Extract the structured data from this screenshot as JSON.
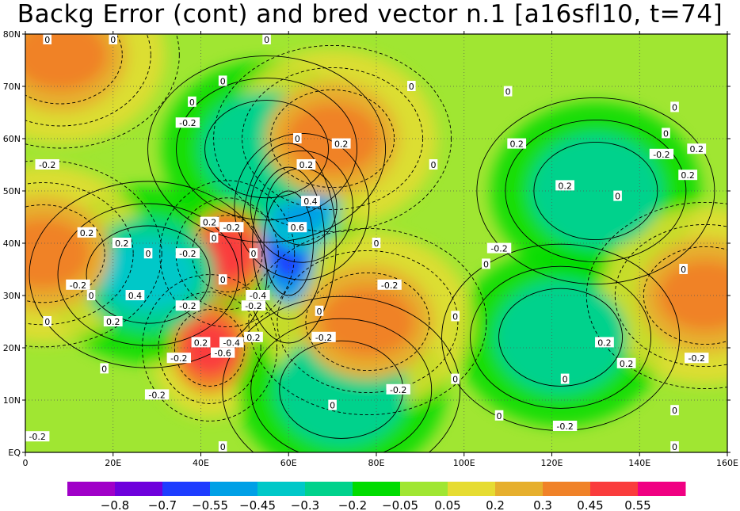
{
  "chart_data": {
    "type": "heatmap",
    "title": "Backg Error (cont) and bred vector n.1 [a16sfl10, t=74]",
    "projection": "lat-lon map (longitude 0 to 160E, latitude 0 to 80N)",
    "xlim": [
      0,
      160
    ],
    "ylim": [
      0,
      80
    ],
    "x_ticks": [
      "0",
      "20E",
      "40E",
      "60E",
      "80E",
      "100E",
      "120E",
      "140E",
      "160E"
    ],
    "y_ticks": [
      "EQ",
      "10N",
      "20N",
      "30N",
      "40N",
      "50N",
      "60N",
      "70N",
      "80N"
    ],
    "grid": true,
    "colorbar": {
      "placement": "bottom",
      "colors": [
        "#a000c8",
        "#6e00dc",
        "#1e3cff",
        "#00a0e6",
        "#00c8c8",
        "#00d28c",
        "#00dc00",
        "#a0e632",
        "#e6dc32",
        "#e6af2d",
        "#f08228",
        "#fa3c3c",
        "#f00082"
      ],
      "labels": [
        "-0.8",
        "-0.7",
        "-0.55",
        "-0.45",
        "-0.3",
        "-0.2",
        "-0.05",
        "0.05",
        "0.2",
        "0.3",
        "0.45",
        "0.55"
      ]
    },
    "shaded_features": [
      {
        "lon": 46,
        "lat": 38,
        "value": 0.5
      },
      {
        "lon": 42,
        "lat": 20,
        "value": 0.5
      },
      {
        "lon": 60,
        "lat": 40,
        "value": -0.7
      },
      {
        "lon": 63,
        "lat": 47,
        "value": -0.5
      },
      {
        "lon": 28,
        "lat": 34,
        "value": -0.35
      },
      {
        "lon": 122,
        "lat": 22,
        "value": -0.3
      },
      {
        "lon": 130,
        "lat": 50,
        "value": -0.3
      },
      {
        "lon": 72,
        "lat": 12,
        "value": -0.3
      },
      {
        "lon": 55,
        "lat": 58,
        "value": -0.3
      },
      {
        "lon": 4,
        "lat": 38,
        "value": 0.35
      },
      {
        "lon": 155,
        "lat": 30,
        "value": 0.35
      },
      {
        "lon": 78,
        "lat": 25,
        "value": 0.3
      },
      {
        "lon": 8,
        "lat": 76,
        "value": 0.3
      },
      {
        "lon": 70,
        "lat": 60,
        "value": 0.3
      }
    ],
    "contour_labels": [
      {
        "text": "0",
        "lon": 5,
        "lat": 79
      },
      {
        "text": "0",
        "lon": 20,
        "lat": 79
      },
      {
        "text": "0",
        "lon": 55,
        "lat": 79
      },
      {
        "text": "0",
        "lon": 45,
        "lat": 71
      },
      {
        "text": "0",
        "lon": 88,
        "lat": 70
      },
      {
        "text": "0",
        "lon": 110,
        "lat": 69
      },
      {
        "text": "0",
        "lon": 38,
        "lat": 67
      },
      {
        "text": "-0.2",
        "lon": 37,
        "lat": 63
      },
      {
        "text": "0",
        "lon": 148,
        "lat": 66
      },
      {
        "text": "0",
        "lon": 62,
        "lat": 60
      },
      {
        "text": "0.2",
        "lon": 72,
        "lat": 59
      },
      {
        "text": "0.2",
        "lon": 112,
        "lat": 59
      },
      {
        "text": "0",
        "lon": 146,
        "lat": 61
      },
      {
        "text": "-0.2",
        "lon": 145,
        "lat": 57
      },
      {
        "text": "0.2",
        "lon": 153,
        "lat": 58
      },
      {
        "text": "-0.2",
        "lon": 5,
        "lat": 55
      },
      {
        "text": "0.2",
        "lon": 64,
        "lat": 55
      },
      {
        "text": "0",
        "lon": 93,
        "lat": 55
      },
      {
        "text": "0.2",
        "lon": 151,
        "lat": 53
      },
      {
        "text": "0.2",
        "lon": 123,
        "lat": 51
      },
      {
        "text": "0",
        "lon": 135,
        "lat": 49
      },
      {
        "text": "0.4",
        "lon": 65,
        "lat": 48
      },
      {
        "text": "0.2",
        "lon": 42,
        "lat": 44
      },
      {
        "text": "0.6",
        "lon": 62,
        "lat": 43
      },
      {
        "text": "0.2",
        "lon": 14,
        "lat": 42
      },
      {
        "text": "-0.2",
        "lon": 47,
        "lat": 43
      },
      {
        "text": "0",
        "lon": 43,
        "lat": 41
      },
      {
        "text": "0.2",
        "lon": 22,
        "lat": 40
      },
      {
        "text": "0",
        "lon": 80,
        "lat": 40
      },
      {
        "text": "-0.2",
        "lon": 108,
        "lat": 39
      },
      {
        "text": "0",
        "lon": 28,
        "lat": 38
      },
      {
        "text": "-0.2",
        "lon": 37,
        "lat": 38
      },
      {
        "text": "0",
        "lon": 52,
        "lat": 38
      },
      {
        "text": "0",
        "lon": 105,
        "lat": 36
      },
      {
        "text": "0",
        "lon": 150,
        "lat": 35
      },
      {
        "text": "0",
        "lon": 45,
        "lat": 33
      },
      {
        "text": "-0.2",
        "lon": 12,
        "lat": 32
      },
      {
        "text": "-0.2",
        "lon": 83,
        "lat": 32
      },
      {
        "text": "-0.4",
        "lon": 53,
        "lat": 30
      },
      {
        "text": "0.4",
        "lon": 25,
        "lat": 30
      },
      {
        "text": "0",
        "lon": 15,
        "lat": 30
      },
      {
        "text": "-0.2",
        "lon": 52,
        "lat": 28
      },
      {
        "text": "-0.2",
        "lon": 37,
        "lat": 28
      },
      {
        "text": "0",
        "lon": 67,
        "lat": 27
      },
      {
        "text": "0",
        "lon": 98,
        "lat": 26
      },
      {
        "text": "0",
        "lon": 5,
        "lat": 25
      },
      {
        "text": "0.2",
        "lon": 20,
        "lat": 25
      },
      {
        "text": "0.2",
        "lon": 52,
        "lat": 22
      },
      {
        "text": "0.2",
        "lon": 40,
        "lat": 21
      },
      {
        "text": "-0.4",
        "lon": 47,
        "lat": 21
      },
      {
        "text": "-0.2",
        "lon": 68,
        "lat": 22
      },
      {
        "text": "-0.6",
        "lon": 45,
        "lat": 19
      },
      {
        "text": "0.2",
        "lon": 132,
        "lat": 21
      },
      {
        "text": "-0.2",
        "lon": 35,
        "lat": 18
      },
      {
        "text": "0.2",
        "lon": 137,
        "lat": 17
      },
      {
        "text": "-0.2",
        "lon": 153,
        "lat": 18
      },
      {
        "text": "0",
        "lon": 18,
        "lat": 16
      },
      {
        "text": "0",
        "lon": 98,
        "lat": 14
      },
      {
        "text": "0",
        "lon": 123,
        "lat": 14
      },
      {
        "text": "-0.2",
        "lon": 85,
        "lat": 12
      },
      {
        "text": "-0.2",
        "lon": 30,
        "lat": 11
      },
      {
        "text": "0",
        "lon": 70,
        "lat": 9
      },
      {
        "text": "0",
        "lon": 108,
        "lat": 7
      },
      {
        "text": "0",
        "lon": 148,
        "lat": 8
      },
      {
        "text": "-0.2",
        "lon": 123,
        "lat": 5
      },
      {
        "text": "-0.2",
        "lon": 2,
        "lat": 3
      },
      {
        "text": "0",
        "lon": 45,
        "lat": 0
      },
      {
        "text": "0",
        "lon": 148,
        "lat": 0
      }
    ]
  }
}
